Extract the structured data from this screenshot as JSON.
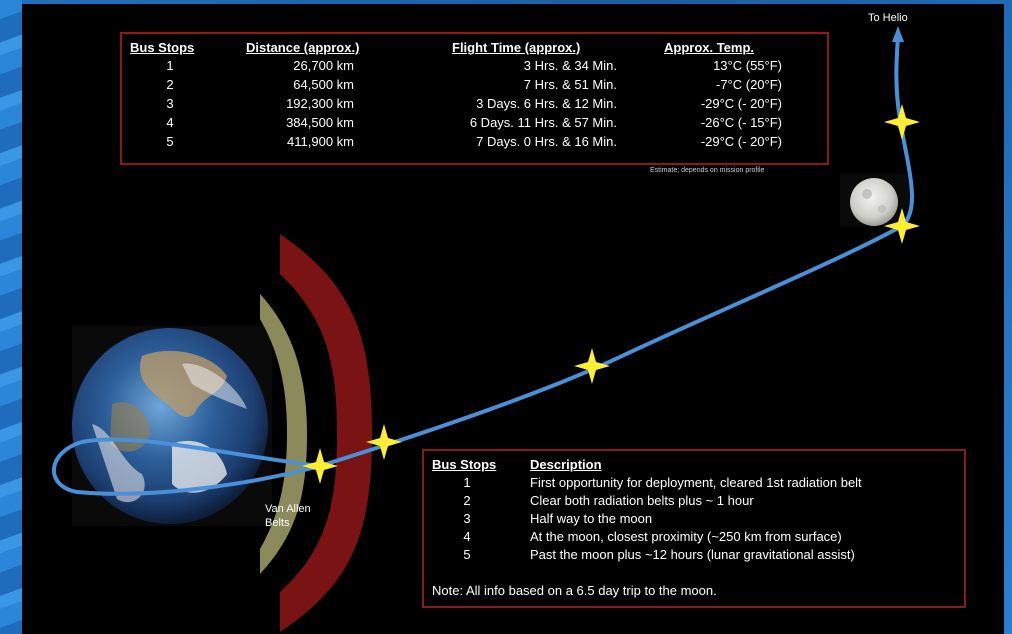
{
  "colors": {
    "background": "#000000",
    "frame": "#1f6fc0",
    "table_border": "#8b1a1a",
    "trajectory": "#4a90d9",
    "star": "#ffee33",
    "outer_belt": "#7a1414",
    "inner_belt": "#8a8a5a"
  },
  "top_table": {
    "headers": [
      "Bus Stops",
      "Distance (approx.)",
      "Flight Time (approx.)",
      "Approx. Temp."
    ],
    "rows": [
      {
        "stop": "1",
        "distance": "26,700 km",
        "time": "3 Hrs. & 34 Min.",
        "temp": "13°C (55°F)"
      },
      {
        "stop": "2",
        "distance": "64,500 km",
        "time": "7 Hrs. & 51 Min.",
        "temp": "-7°C (20°F)"
      },
      {
        "stop": "3",
        "distance": "192,300 km",
        "time": "3 Days.  6 Hrs. & 12 Min.",
        "temp": "-29°C (- 20°F)"
      },
      {
        "stop": "4",
        "distance": "384,500 km",
        "time": "6 Days.  11 Hrs. & 57 Min.",
        "temp": "-26°C (- 15°F)"
      },
      {
        "stop": "5",
        "distance": "411,900 km",
        "time": "7 Days.  0 Hrs. & 16 Min.",
        "temp": "-29°C (- 20°F)"
      }
    ],
    "footnote": "Estimate; depends on mission profile"
  },
  "diagram": {
    "to_helio_label": "To Helio",
    "van_allen_label": "Van Allen Belts",
    "earth_icon": "earth-icon",
    "moon_icon": "moon-icon",
    "star_icon": "star-icon"
  },
  "bottom_table": {
    "headers": [
      "Bus Stops",
      "Description"
    ],
    "rows": [
      {
        "stop": "1",
        "desc": "First opportunity for deployment, cleared 1st radiation belt"
      },
      {
        "stop": "2",
        "desc": "Clear both radiation belts plus ~ 1 hour"
      },
      {
        "stop": "3",
        "desc": "Half way to the moon"
      },
      {
        "stop": "4",
        "desc": "At the moon, closest proximity (~250 km from surface)"
      },
      {
        "stop": "5",
        "desc": "Past the moon plus ~12 hours (lunar gravitational assist)"
      }
    ],
    "note": "Note: All info based on a 6.5 day trip to the moon."
  }
}
